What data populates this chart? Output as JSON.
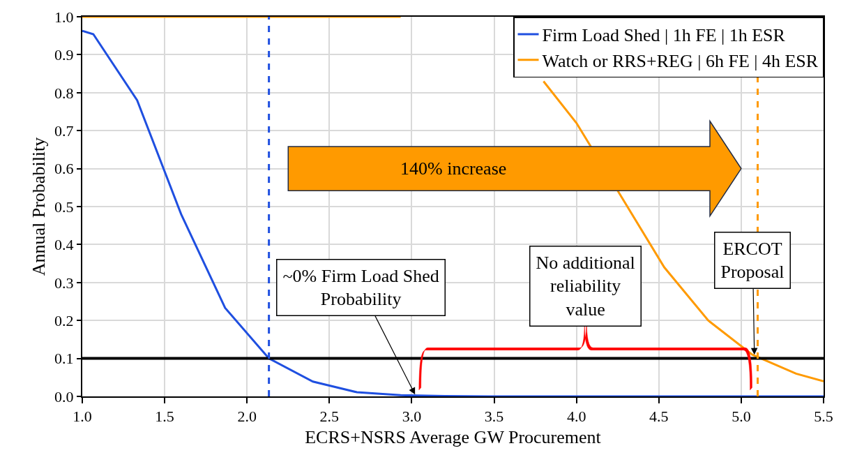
{
  "chart_data": {
    "type": "line",
    "xlabel": "ECRS+NSRS Average GW Procurement",
    "ylabel": "Annual Probability",
    "series": [
      {
        "name": "Firm Load Shed | 1h FE | 1h ESR",
        "color": "#1f4fe0",
        "x": [
          1.0,
          1.067,
          1.333,
          1.6,
          1.867,
          2.133,
          2.4,
          2.667,
          2.933,
          3.2,
          3.467,
          3.733,
          4.0,
          4.267,
          4.533,
          4.8,
          5.067,
          5.333,
          5.5
        ],
        "values": [
          0.963,
          0.954,
          0.78,
          0.48,
          0.233,
          0.1,
          0.039,
          0.011,
          0.003,
          0.001,
          0,
          0,
          0,
          0,
          0,
          0,
          0,
          0,
          0
        ]
      },
      {
        "name": "Watch or RRS+REG | 6h FE | 4h ESR",
        "color": "#ff9a00",
        "x": [
          1.0,
          1.067,
          1.333,
          1.6,
          1.867,
          2.133,
          2.4,
          2.667,
          2.933,
          3.2,
          3.8,
          4.0,
          4.267,
          4.533,
          4.8,
          5.067,
          5.333,
          5.5
        ],
        "values": [
          1,
          1,
          1,
          1,
          1,
          1,
          1,
          1,
          1,
          null,
          0.83,
          0.72,
          0.53,
          0.34,
          0.2,
          0.11,
          0.06,
          0.04
        ]
      }
    ],
    "xlim": [
      1.0,
      5.5
    ],
    "xticks": [
      {
        "value": 1,
        "label": "1.0"
      },
      {
        "value": 1.5,
        "label": "1.5"
      },
      {
        "value": 2,
        "label": "2.0"
      },
      {
        "value": 2.5,
        "label": "2.5"
      },
      {
        "value": 3,
        "label": "3.0"
      },
      {
        "value": 3.5,
        "label": "3.5"
      },
      {
        "value": 4,
        "label": "4.0"
      },
      {
        "value": 4.5,
        "label": "4.5"
      },
      {
        "value": 5,
        "label": "5.0"
      },
      {
        "value": 5.5,
        "label": "5.5"
      }
    ],
    "ylim": [
      0,
      1.0
    ],
    "yticks": [
      {
        "value": 0,
        "label": "0.0"
      },
      {
        "value": 0.1,
        "label": "0.1"
      },
      {
        "value": 0.2,
        "label": "0.2"
      },
      {
        "value": 0.3,
        "label": "0.3"
      },
      {
        "value": 0.4,
        "label": "0.4"
      },
      {
        "value": 0.5,
        "label": "0.5"
      },
      {
        "value": 0.6,
        "label": "0.6"
      },
      {
        "value": 0.7,
        "label": "0.7"
      },
      {
        "value": 0.8,
        "label": "0.8"
      },
      {
        "value": 0.9,
        "label": "0.9"
      },
      {
        "value": 1,
        "label": "1.0"
      }
    ],
    "ref_lines": [
      {
        "axis": "y",
        "value": 0.1,
        "color": "#000000",
        "line_style": "solid"
      },
      {
        "axis": "x",
        "value": 2.133,
        "color": "#1f4fe0",
        "line_style": "dashed"
      },
      {
        "axis": "x",
        "value": 5.1,
        "color": "#ff9a00",
        "line_style": "dashed"
      }
    ],
    "annotations": [
      "140% increase",
      {
        "text": "~0% Firm Load Shed Probability",
        "x": 3.02,
        "y": 0.005
      },
      "No additional reliability value",
      {
        "text": "ERCOT Proposal",
        "x": 5.08,
        "y": 0.11
      }
    ],
    "grid": true,
    "legend": "top right",
    "marker": "none",
    "line_style": "solid"
  }
}
